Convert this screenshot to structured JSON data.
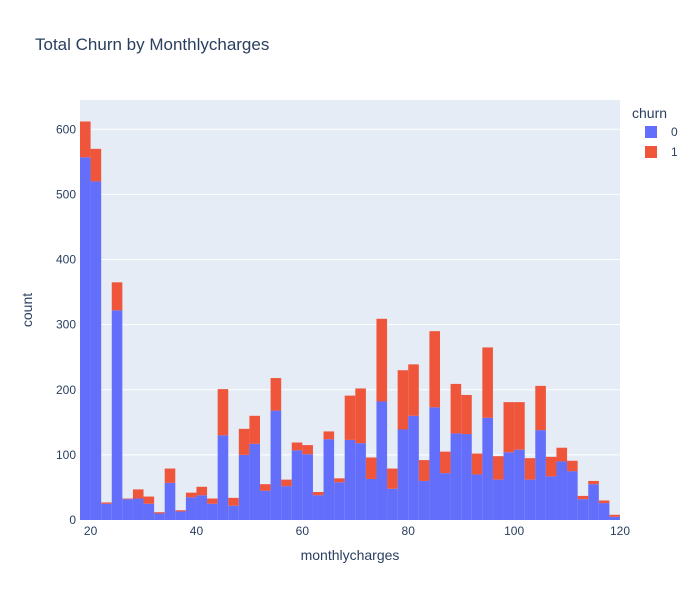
{
  "chart_data": {
    "type": "bar",
    "stacked": true,
    "title": "Total Churn by Monthlycharges",
    "xlabel": "monthlycharges",
    "ylabel": "count",
    "bin_width": 2,
    "bin_starts": [
      18,
      20,
      22,
      24,
      26,
      28,
      30,
      32,
      34,
      36,
      38,
      40,
      42,
      44,
      46,
      48,
      50,
      52,
      54,
      56,
      58,
      60,
      62,
      64,
      66,
      68,
      70,
      72,
      74,
      76,
      78,
      80,
      82,
      84,
      86,
      88,
      90,
      92,
      94,
      96,
      98,
      100,
      102,
      104,
      106,
      108,
      110,
      112,
      114,
      116,
      118
    ],
    "xlim": [
      18,
      120
    ],
    "ylim": [
      0,
      645
    ],
    "xticks": [
      20,
      40,
      60,
      80,
      100,
      120
    ],
    "yticks": [
      0,
      100,
      200,
      300,
      400,
      500,
      600
    ],
    "legend_title": "churn",
    "legend_position": "top-right",
    "grid": true,
    "series": [
      {
        "name": "0",
        "color": "#636efa",
        "values": [
          557,
          520,
          25,
          322,
          32,
          33,
          25,
          10,
          57,
          13,
          35,
          38,
          25,
          130,
          22,
          100,
          117,
          45,
          168,
          52,
          107,
          101,
          38,
          124,
          58,
          123,
          118,
          63,
          182,
          48,
          139,
          160,
          60,
          173,
          72,
          133,
          132,
          70,
          157,
          62,
          104,
          108,
          62,
          138,
          67,
          90,
          75,
          32,
          55,
          26,
          5
        ]
      },
      {
        "name": "1",
        "color": "#ef553b",
        "values": [
          55,
          50,
          2,
          43,
          1,
          14,
          11,
          2,
          22,
          2,
          7,
          13,
          8,
          71,
          12,
          40,
          43,
          10,
          50,
          10,
          12,
          14,
          5,
          12,
          6,
          68,
          84,
          33,
          127,
          31,
          91,
          79,
          32,
          117,
          33,
          76,
          60,
          32,
          108,
          36,
          77,
          73,
          33,
          68,
          30,
          21,
          16,
          5,
          5,
          4,
          3
        ]
      }
    ]
  }
}
